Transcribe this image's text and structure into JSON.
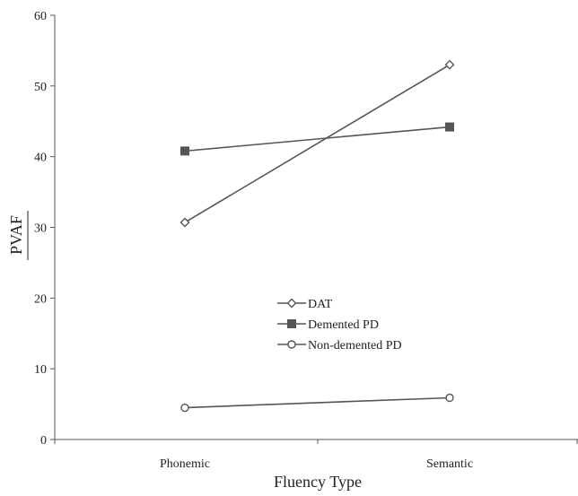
{
  "chart_data": {
    "type": "line",
    "categories": [
      "Phonemic",
      "Semantic"
    ],
    "series": [
      {
        "name": "DAT",
        "marker": "diamond-open",
        "values": [
          30.7,
          53.0
        ]
      },
      {
        "name": "Demented PD",
        "marker": "square-filled",
        "values": [
          40.8,
          44.2
        ]
      },
      {
        "name": "Non-demented PD",
        "marker": "circle-open",
        "values": [
          4.5,
          5.9
        ]
      }
    ],
    "xlabel": "Fluency Type",
    "ylabel": "PVAF",
    "ylim": [
      0,
      60
    ],
    "yticks": [
      "0",
      "10",
      "20",
      "30",
      "40",
      "50",
      "60"
    ],
    "grid": false,
    "legend_position": "center",
    "colors": {
      "line": "#555555",
      "marker_fill": "#555555"
    }
  }
}
